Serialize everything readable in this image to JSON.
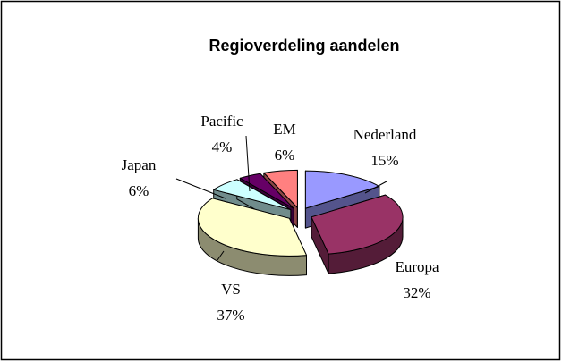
{
  "chart_data": {
    "type": "pie",
    "title": "Regioverdeling aandelen",
    "categories": [
      "Nederland",
      "Europa",
      "VS",
      "Japan",
      "Pacific",
      "EM"
    ],
    "values": [
      15,
      32,
      37,
      6,
      4,
      6
    ],
    "value_labels": [
      "15%",
      "32%",
      "37%",
      "6%",
      "4%",
      "6%"
    ],
    "colors": [
      "#9999ff",
      "#993366",
      "#ffffcc",
      "#ccffff",
      "#660066",
      "#ff8080"
    ]
  }
}
